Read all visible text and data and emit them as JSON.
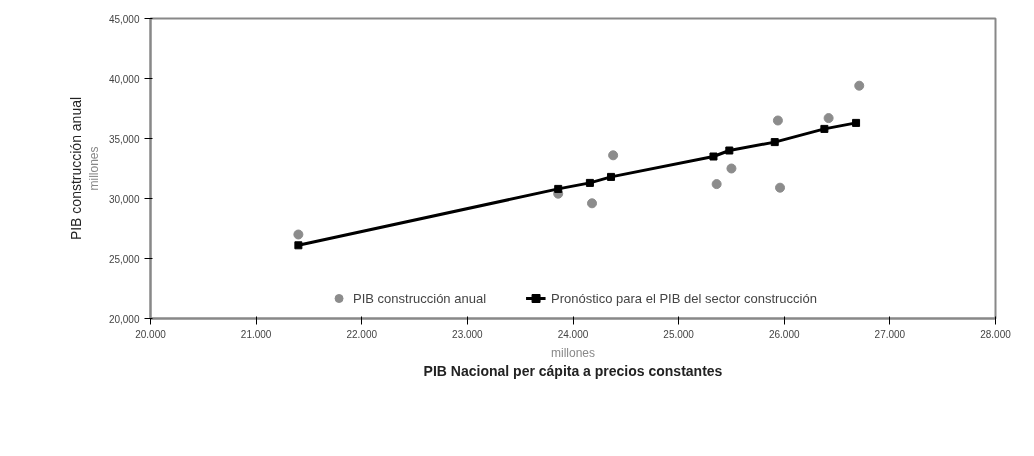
{
  "chart_data": {
    "type": "scatter",
    "xlabel": "PIB Nacional per cápita a precios constantes",
    "ylabel": "PIB construcción anual",
    "annotations": [
      "millones",
      "millones"
    ],
    "xlim": [
      20,
      28
    ],
    "ylim": [
      20000,
      45000
    ],
    "xticks": [
      {
        "value": 20,
        "label": "20.000"
      },
      {
        "value": 21,
        "label": "21.000"
      },
      {
        "value": 22,
        "label": "22.000"
      },
      {
        "value": 23,
        "label": "23.000"
      },
      {
        "value": 24,
        "label": "24.000"
      },
      {
        "value": 25,
        "label": "25.000"
      },
      {
        "value": 26,
        "label": "26.000"
      },
      {
        "value": 27,
        "label": "27.000"
      },
      {
        "value": 28,
        "label": "28.000"
      }
    ],
    "yticks": [
      {
        "value": 20000,
        "label": "20,000"
      },
      {
        "value": 25000,
        "label": "25,000"
      },
      {
        "value": 30000,
        "label": "30,000"
      },
      {
        "value": 35000,
        "label": "35,000"
      },
      {
        "value": 40000,
        "label": "40,000"
      },
      {
        "value": 45000,
        "label": "45,000"
      }
    ],
    "grid": false,
    "legend": "bottom",
    "series": [
      {
        "name": "PIB construcción anual",
        "type": "scatter",
        "marker": "circle",
        "color": "#8c8c8c",
        "x": [
          21.4,
          23.86,
          24.18,
          24.38,
          25.36,
          25.5,
          25.94,
          25.96,
          26.42,
          26.71
        ],
        "values": [
          27000,
          30400,
          29600,
          33600,
          31200,
          32500,
          36500,
          30900,
          36700,
          39400
        ]
      },
      {
        "name": "Pronóstico para el PIB del sector construcción",
        "type": "line",
        "marker": "square",
        "color": "#000000",
        "x": [
          21.4,
          23.86,
          24.16,
          24.36,
          25.33,
          25.48,
          25.91,
          26.38,
          26.68
        ],
        "values": [
          26100,
          30800,
          31300,
          31800,
          33500,
          34000,
          34700,
          35800,
          36300
        ]
      }
    ]
  }
}
